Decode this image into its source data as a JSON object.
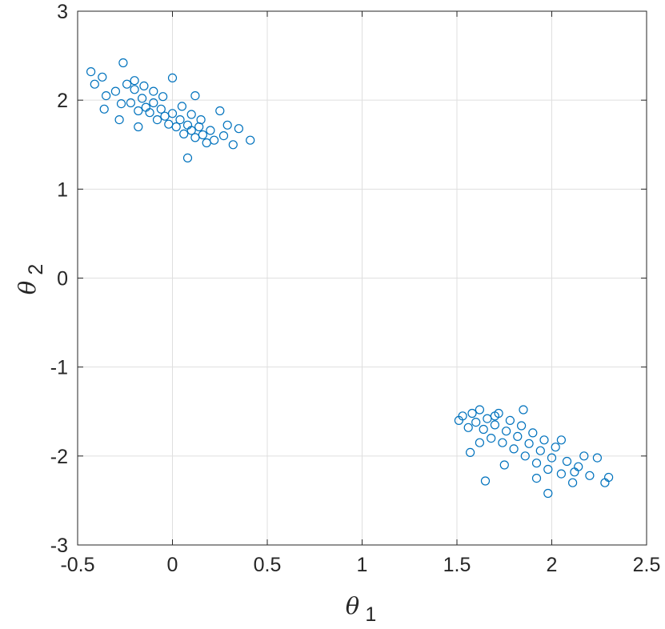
{
  "chart_data": {
    "type": "scatter",
    "title": "",
    "xlabel": {
      "symbol": "θ",
      "subscript": "1"
    },
    "ylabel": {
      "symbol": "θ",
      "subscript": "2"
    },
    "xlim": [
      -0.5,
      2.5
    ],
    "ylim": [
      -3,
      3
    ],
    "xticks": [
      -0.5,
      0,
      0.5,
      1,
      1.5,
      2,
      2.5
    ],
    "yticks": [
      -3,
      -2,
      -1,
      0,
      1,
      2,
      3
    ],
    "xtick_labels": [
      "-0.5",
      "0",
      "0.5",
      "1",
      "1.5",
      "2",
      "2.5"
    ],
    "ytick_labels": [
      "-3",
      "-2",
      "-1",
      "0",
      "1",
      "2",
      "3"
    ],
    "grid": true,
    "marker": "open-circle",
    "color": "#0072BD",
    "series": [
      {
        "points": [
          [
            -0.43,
            2.32
          ],
          [
            -0.37,
            2.26
          ],
          [
            -0.41,
            2.18
          ],
          [
            -0.35,
            2.05
          ],
          [
            -0.36,
            1.9
          ],
          [
            -0.26,
            2.42
          ],
          [
            -0.3,
            2.1
          ],
          [
            -0.27,
            1.96
          ],
          [
            -0.24,
            2.18
          ],
          [
            -0.22,
            1.97
          ],
          [
            -0.2,
            2.12
          ],
          [
            -0.18,
            1.88
          ],
          [
            -0.16,
            2.02
          ],
          [
            -0.14,
            1.92
          ],
          [
            -0.12,
            1.86
          ],
          [
            -0.1,
            1.97
          ],
          [
            -0.08,
            1.78
          ],
          [
            -0.06,
            1.9
          ],
          [
            -0.04,
            1.82
          ],
          [
            -0.02,
            1.73
          ],
          [
            0.0,
            2.25
          ],
          [
            0.0,
            1.85
          ],
          [
            0.02,
            1.7
          ],
          [
            0.04,
            1.78
          ],
          [
            0.06,
            1.62
          ],
          [
            0.08,
            1.72
          ],
          [
            0.08,
            1.35
          ],
          [
            0.1,
            1.66
          ],
          [
            0.12,
            1.58
          ],
          [
            0.14,
            1.7
          ],
          [
            0.16,
            1.61
          ],
          [
            0.18,
            1.52
          ],
          [
            0.2,
            1.66
          ],
          [
            0.22,
            1.55
          ],
          [
            0.25,
            1.88
          ],
          [
            0.27,
            1.6
          ],
          [
            0.29,
            1.72
          ],
          [
            0.32,
            1.5
          ],
          [
            0.35,
            1.68
          ],
          [
            0.41,
            1.55
          ],
          [
            -0.2,
            2.22
          ],
          [
            -0.15,
            2.16
          ],
          [
            -0.1,
            2.1
          ],
          [
            -0.05,
            2.04
          ],
          [
            0.05,
            1.93
          ],
          [
            0.1,
            1.84
          ],
          [
            0.15,
            1.78
          ],
          [
            -0.28,
            1.78
          ],
          [
            -0.18,
            1.7
          ],
          [
            0.12,
            2.05
          ]
        ]
      },
      {
        "points": [
          [
            1.51,
            -1.6
          ],
          [
            1.53,
            -1.55
          ],
          [
            1.56,
            -1.68
          ],
          [
            1.58,
            -1.52
          ],
          [
            1.6,
            -1.62
          ],
          [
            1.62,
            -1.48
          ],
          [
            1.64,
            -1.7
          ],
          [
            1.66,
            -1.58
          ],
          [
            1.68,
            -1.8
          ],
          [
            1.7,
            -1.65
          ],
          [
            1.72,
            -1.52
          ],
          [
            1.74,
            -1.85
          ],
          [
            1.76,
            -1.72
          ],
          [
            1.78,
            -1.6
          ],
          [
            1.8,
            -1.92
          ],
          [
            1.82,
            -1.78
          ],
          [
            1.84,
            -1.66
          ],
          [
            1.86,
            -2.0
          ],
          [
            1.88,
            -1.86
          ],
          [
            1.9,
            -1.74
          ],
          [
            1.92,
            -2.08
          ],
          [
            1.94,
            -1.94
          ],
          [
            1.96,
            -1.82
          ],
          [
            1.98,
            -2.15
          ],
          [
            2.0,
            -2.02
          ],
          [
            2.02,
            -1.9
          ],
          [
            2.05,
            -2.2
          ],
          [
            2.08,
            -2.06
          ],
          [
            2.11,
            -2.3
          ],
          [
            2.14,
            -2.12
          ],
          [
            2.17,
            -2.0
          ],
          [
            2.2,
            -2.22
          ],
          [
            2.24,
            -2.02
          ],
          [
            2.28,
            -2.3
          ],
          [
            2.3,
            -2.24
          ],
          [
            1.65,
            -2.28
          ],
          [
            1.98,
            -2.42
          ],
          [
            1.57,
            -1.96
          ],
          [
            1.7,
            -1.55
          ],
          [
            1.85,
            -1.48
          ],
          [
            1.75,
            -2.1
          ],
          [
            2.05,
            -1.82
          ],
          [
            1.62,
            -1.85
          ],
          [
            1.92,
            -2.25
          ],
          [
            2.12,
            -2.18
          ]
        ]
      }
    ]
  }
}
